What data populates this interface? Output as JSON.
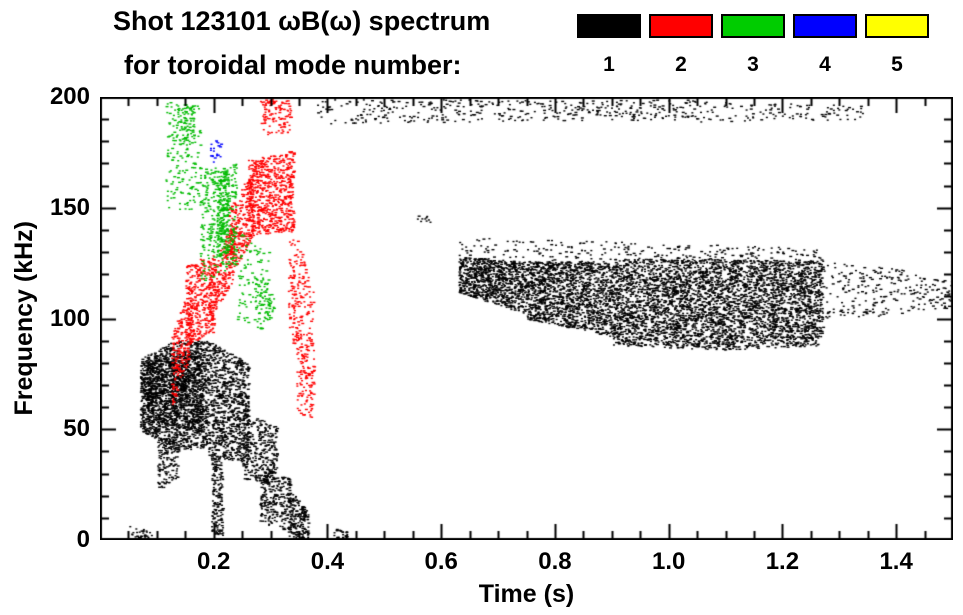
{
  "chart_data": {
    "type": "scatter",
    "subtype": "spectrogram-points",
    "title": "Shot 123101 ωB(ω) spectrum for toroidal mode number:",
    "title_line1": "Shot 123101 ωB(ω) spectrum",
    "title_line2": "for toroidal mode number:",
    "xlabel": "Time (s)",
    "ylabel": "Frequency (kHz)",
    "xlim": [
      0.0,
      1.5
    ],
    "ylim": [
      0,
      200
    ],
    "grid": false,
    "xticks": [
      0.2,
      0.4,
      0.6,
      0.8,
      1.0,
      1.2,
      1.4
    ],
    "xtick_labels": [
      "0.2",
      "0.4",
      "0.6",
      "0.8",
      "1.0",
      "1.2",
      "1.4"
    ],
    "xminor_step": 0.05,
    "yticks": [
      0,
      50,
      100,
      150,
      200
    ],
    "ytick_labels": [
      "0",
      "50",
      "100",
      "150",
      "200"
    ],
    "yminor_step": 10,
    "legend": {
      "position": "top-right",
      "entries": [
        {
          "label": "1",
          "color": "#000000"
        },
        {
          "label": "2",
          "color": "#ff0000"
        },
        {
          "label": "3",
          "color": "#00cc00"
        },
        {
          "label": "4",
          "color": "#0000ff"
        },
        {
          "label": "5",
          "color": "#ffff00"
        }
      ]
    },
    "series": [
      {
        "name": "toroidal mode n=1",
        "mode_number": 1,
        "color": "#000000",
        "clusters": [
          {
            "t": [
              0.07,
              0.13
            ],
            "f_start": [
              50,
              82
            ],
            "f_end": [
              40,
              90
            ],
            "n": 800
          },
          {
            "t": [
              0.08,
              0.18
            ],
            "f_start": [
              55,
              80
            ],
            "f_end": [
              48,
              86
            ],
            "n": 700
          },
          {
            "t": [
              0.13,
              0.19
            ],
            "f_start": [
              40,
              90
            ],
            "f_end": [
              42,
              90
            ],
            "n": 800
          },
          {
            "t": [
              0.1,
              0.135
            ],
            "f_start": [
              22,
              45
            ],
            "f_end": [
              28,
              48
            ],
            "n": 130
          },
          {
            "t": [
              0.19,
              0.26
            ],
            "f_start": [
              38,
              90
            ],
            "f_end": [
              35,
              80
            ],
            "n": 850
          },
          {
            "t": [
              0.195,
              0.215
            ],
            "f_start": [
              4,
              40
            ],
            "f_end": [
              0,
              36
            ],
            "n": 180
          },
          {
            "t": [
              0.25,
              0.31
            ],
            "f_start": [
              28,
              58
            ],
            "f_end": [
              24,
              52
            ],
            "n": 320
          },
          {
            "t": [
              0.28,
              0.335
            ],
            "f_start": [
              8,
              34
            ],
            "f_end": [
              4,
              28
            ],
            "n": 260
          },
          {
            "t": [
              0.33,
              0.365
            ],
            "f_start": [
              2,
              24
            ],
            "f_end": [
              0,
              14
            ],
            "n": 180
          },
          {
            "t": [
              0.05,
              0.09
            ],
            "f_start": [
              0,
              7
            ],
            "f_end": [
              0,
              4
            ],
            "n": 40
          },
          {
            "t": [
              0.41,
              0.435
            ],
            "f_start": [
              0,
              6
            ],
            "f_end": [
              0,
              4
            ],
            "n": 28
          },
          {
            "t": [
              0.38,
              0.65
            ],
            "f_start": [
              188,
              199
            ],
            "f_end": [
              189,
              199
            ],
            "n": 140
          },
          {
            "t": [
              0.65,
              1.05
            ],
            "f_start": [
              189,
              199
            ],
            "f_end": [
              190,
              199
            ],
            "n": 240
          },
          {
            "t": [
              1.05,
              1.34
            ],
            "f_start": [
              189,
              198
            ],
            "f_end": [
              190,
              197
            ],
            "n": 110
          },
          {
            "t": [
              0.55,
              0.58
            ],
            "f_start": [
              143,
              147
            ],
            "f_end": [
              143,
              147
            ],
            "n": 10
          },
          {
            "t": [
              0.63,
              0.75
            ],
            "f_start": [
              112,
              128
            ],
            "f_end": [
              102,
              126
            ],
            "n": 850
          },
          {
            "t": [
              0.75,
              0.9
            ],
            "f_start": [
              100,
              126
            ],
            "f_end": [
              92,
              126
            ],
            "n": 1350
          },
          {
            "t": [
              0.9,
              1.1
            ],
            "f_start": [
              88,
              127
            ],
            "f_end": [
              86,
              127
            ],
            "n": 2100
          },
          {
            "t": [
              1.1,
              1.27
            ],
            "f_start": [
              86,
              127
            ],
            "f_end": [
              88,
              126
            ],
            "n": 1750
          },
          {
            "t": [
              0.63,
              1.27
            ],
            "f_start": [
              125,
              137
            ],
            "f_end": [
              126,
              132
            ],
            "n": 260
          },
          {
            "t": [
              1.27,
              1.42
            ],
            "f_start": [
              100,
              126
            ],
            "f_end": [
              102,
              122
            ],
            "n": 170
          },
          {
            "t": [
              1.42,
              1.5
            ],
            "f_start": [
              103,
              121
            ],
            "f_end": [
              105,
              118
            ],
            "n": 80
          }
        ]
      },
      {
        "name": "toroidal mode n=2",
        "mode_number": 2,
        "color": "#ff0000",
        "clusters": [
          {
            "t": [
              0.125,
              0.16
            ],
            "f_start": [
              60,
              92
            ],
            "f_end": [
              85,
              118
            ],
            "n": 230
          },
          {
            "t": [
              0.15,
              0.2
            ],
            "f_start": [
              88,
              124
            ],
            "f_end": [
              94,
              130
            ],
            "n": 340
          },
          {
            "t": [
              0.19,
              0.235
            ],
            "f_start": [
              98,
              118
            ],
            "f_end": [
              118,
              146
            ],
            "n": 220
          },
          {
            "t": [
              0.225,
              0.27
            ],
            "f_start": [
              118,
              150
            ],
            "f_end": [
              138,
              168
            ],
            "n": 300
          },
          {
            "t": [
              0.26,
              0.34
            ],
            "f_start": [
              137,
              172
            ],
            "f_end": [
              140,
              176
            ],
            "n": 650
          },
          {
            "t": [
              0.28,
              0.335
            ],
            "f_start": [
              183,
              199
            ],
            "f_end": [
              184,
              199
            ],
            "n": 110
          },
          {
            "t": [
              0.33,
              0.375
            ],
            "f_start": [
              95,
              150
            ],
            "f_end": [
              62,
              112
            ],
            "n": 230
          },
          {
            "t": [
              0.345,
              0.372
            ],
            "f_start": [
              58,
              92
            ],
            "f_end": [
              55,
              76
            ],
            "n": 90
          }
        ]
      },
      {
        "name": "toroidal mode n=3",
        "mode_number": 3,
        "color": "#00bb00",
        "clusters": [
          {
            "t": [
              0.115,
              0.175
            ],
            "f_start": [
              148,
              198
            ],
            "f_end": [
              150,
              196
            ],
            "n": 170
          },
          {
            "t": [
              0.13,
              0.165
            ],
            "f_start": [
              178,
              197
            ],
            "f_end": [
              180,
              197
            ],
            "n": 70
          },
          {
            "t": [
              0.175,
              0.24
            ],
            "f_start": [
              116,
              168
            ],
            "f_end": [
              124,
              170
            ],
            "n": 330
          },
          {
            "t": [
              0.205,
              0.225
            ],
            "f_start": [
              128,
              168
            ],
            "f_end": [
              130,
              168
            ],
            "n": 190
          },
          {
            "t": [
              0.24,
              0.3
            ],
            "f_start": [
              98,
              140
            ],
            "f_end": [
              94,
              130
            ],
            "n": 110
          },
          {
            "t": [
              0.27,
              0.305
            ],
            "f_start": [
              103,
              122
            ],
            "f_end": [
              98,
              114
            ],
            "n": 55
          }
        ]
      },
      {
        "name": "toroidal mode n=4",
        "mode_number": 4,
        "color": "#0000ff",
        "clusters": [
          {
            "t": [
              0.193,
              0.212
            ],
            "f_start": [
              170,
              181
            ],
            "f_end": [
              172,
              181
            ],
            "n": 22
          }
        ]
      },
      {
        "name": "toroidal mode n=5",
        "mode_number": 5,
        "color": "#ffff00",
        "clusters": []
      }
    ]
  }
}
